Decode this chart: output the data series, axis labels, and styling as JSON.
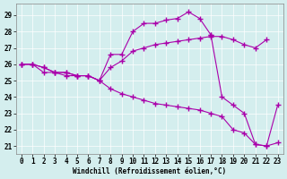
{
  "xlabel": "Windchill (Refroidissement éolien,°C)",
  "background_color": "#d4eeee",
  "line_color": "#aa00aa",
  "ylim": [
    20.5,
    29.7
  ],
  "xlim": [
    -0.5,
    23.5
  ],
  "yticks": [
    21,
    22,
    23,
    24,
    25,
    26,
    27,
    28,
    29
  ],
  "xticks": [
    0,
    1,
    2,
    3,
    4,
    5,
    6,
    7,
    8,
    9,
    10,
    11,
    12,
    13,
    14,
    15,
    16,
    17,
    18,
    19,
    20,
    21,
    22,
    23
  ],
  "line1_x": [
    0,
    1,
    2,
    3,
    4,
    5,
    6,
    7,
    8,
    9,
    10,
    11,
    12,
    13,
    14,
    15,
    16,
    17
  ],
  "line1_y": [
    26.0,
    26.0,
    25.8,
    25.5,
    25.5,
    25.3,
    25.3,
    25.0,
    26.6,
    26.6,
    28.0,
    28.5,
    28.5,
    28.7,
    28.8,
    29.2,
    28.8,
    27.8
  ],
  "line2_x": [
    0,
    1,
    2,
    3,
    4,
    5,
    6,
    7,
    8,
    9,
    10,
    11,
    12,
    13,
    14,
    15,
    16,
    17,
    18,
    19,
    20,
    21,
    22
  ],
  "line2_y": [
    26.0,
    26.0,
    25.8,
    25.5,
    25.5,
    25.3,
    25.3,
    25.0,
    25.8,
    26.2,
    26.8,
    27.0,
    27.2,
    27.3,
    27.4,
    27.5,
    27.6,
    27.7,
    27.7,
    27.5,
    27.2,
    27.0,
    27.5
  ],
  "line3_x": [
    0,
    1,
    2,
    3,
    4,
    5,
    6,
    7,
    8,
    9,
    10,
    11,
    12,
    13,
    14,
    15,
    16,
    17,
    18,
    19,
    20,
    21,
    22,
    23
  ],
  "line3_y": [
    26.0,
    26.0,
    25.5,
    25.5,
    25.3,
    25.3,
    25.3,
    25.0,
    24.5,
    24.2,
    24.0,
    23.8,
    23.6,
    23.5,
    23.4,
    23.3,
    23.2,
    23.0,
    22.8,
    22.0,
    21.8,
    21.1,
    21.0,
    21.2
  ],
  "line4_x": [
    17,
    18,
    19,
    20,
    21,
    22,
    23
  ],
  "line4_y": [
    27.8,
    24.0,
    23.5,
    23.0,
    21.1,
    21.0,
    23.5
  ]
}
